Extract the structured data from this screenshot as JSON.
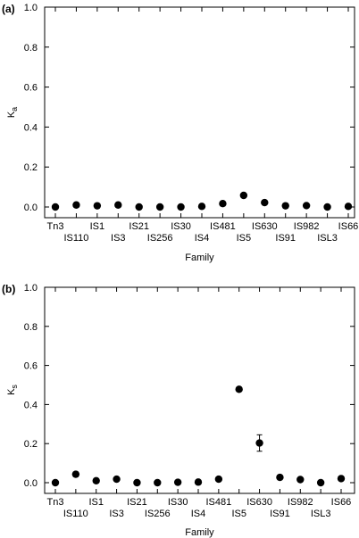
{
  "chart_data": [
    {
      "type": "scatter",
      "panel_label": "(a)",
      "title": "",
      "xlabel": "Family",
      "ylabel": "K",
      "ylabel_sub": "a",
      "ylim": [
        0,
        1.0
      ],
      "y_ticks": [
        "0.0",
        "0.2",
        "0.4",
        "0.6",
        "0.8",
        "1.0"
      ],
      "categories": [
        "Tn3",
        "IS110",
        "IS1",
        "IS3",
        "IS21",
        "IS256",
        "IS30",
        "IS4",
        "IS481",
        "IS5",
        "IS630",
        "IS91",
        "IS982",
        "ISL3",
        "IS66"
      ],
      "values": [
        0.0,
        0.01,
        0.006,
        0.01,
        0.0,
        0.0,
        0.0,
        0.003,
        0.017,
        0.058,
        0.022,
        0.006,
        0.007,
        0.0,
        0.003
      ],
      "errors": [
        0,
        0,
        0,
        0,
        0,
        0,
        0,
        0,
        0,
        0,
        0,
        0,
        0,
        0,
        0
      ]
    },
    {
      "type": "scatter",
      "panel_label": "(b)",
      "title": "",
      "xlabel": "Family",
      "ylabel": "K",
      "ylabel_sub": "s",
      "ylim": [
        0,
        1.0
      ],
      "y_ticks": [
        "0.0",
        "0.2",
        "0.4",
        "0.6",
        "0.8",
        "1.0"
      ],
      "categories": [
        "Tn3",
        "IS110",
        "IS1",
        "IS3",
        "IS21",
        "IS256",
        "IS30",
        "IS4",
        "IS481",
        "IS5",
        "IS630",
        "IS91",
        "IS982",
        "ISL3",
        "IS66"
      ],
      "values": [
        0.0,
        0.043,
        0.01,
        0.018,
        0.0,
        0.0,
        0.002,
        0.003,
        0.018,
        0.478,
        0.203,
        0.027,
        0.016,
        0.0,
        0.021
      ],
      "errors": [
        0,
        0.012,
        0,
        0,
        0,
        0,
        0,
        0,
        0,
        0.008,
        0.042,
        0,
        0,
        0,
        0
      ]
    }
  ]
}
